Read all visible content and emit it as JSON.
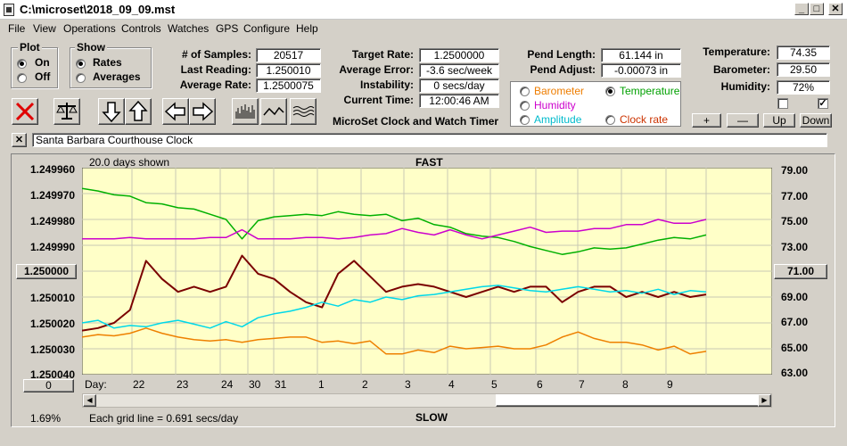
{
  "window": {
    "title": "C:\\microset\\2018_09_09.mst"
  },
  "menu": [
    "File",
    "View",
    "Operations",
    "Controls",
    "Watches",
    "GPS",
    "Configure",
    "Help"
  ],
  "plot": {
    "label": "Plot",
    "on": "On",
    "off": "Off",
    "selected": "on"
  },
  "show": {
    "label": "Show",
    "rates": "Rates",
    "averages": "Averages",
    "selected": "rates"
  },
  "stats": {
    "samples_label": "# of Samples:",
    "samples": "20517",
    "last_label": "Last Reading:",
    "last": "1.250010",
    "avg_label": "Average Rate:",
    "avg": "1.2500075",
    "target_label": "Target Rate:",
    "target": "1.2500000",
    "error_label": "Average Error:",
    "error": "-3.6 sec/week",
    "instab_label": "Instability:",
    "instab": "0 secs/day",
    "time_label": "Current Time:",
    "time": "12:00:46 AM",
    "pendlen_label": "Pend Length:",
    "pendlen": "61.144 in",
    "pendadj_label": "Pend Adjust:",
    "pendadj": "-0.00073 in",
    "temp_label": "Temperature:",
    "temp": "74.35",
    "baro_label": "Barometer:",
    "baro": "29.50",
    "hum_label": "Humidity:",
    "hum": "72%"
  },
  "timer_title": "MicroSet Clock and Watch Timer",
  "sensors": {
    "barometer": "Barometer",
    "temperature": "Temperature",
    "humidity": "Humidity",
    "amplitude": "Amplitude",
    "clockrate": "Clock rate",
    "selected": "temperature",
    "colors": {
      "barometer": "#ee7d00",
      "temperature": "#00a000",
      "humidity": "#cc00cc",
      "amplitude": "#00bbcc",
      "clockrate": "#cc3300"
    }
  },
  "adjust_buttons": {
    "plus": "+",
    "minus": "—",
    "up": "Up",
    "down": "Down"
  },
  "clock_name": "Santa Barbara Courthouse Clock",
  "chart_data": {
    "type": "line",
    "days_shown": "20.0 days shown",
    "top_label": "FAST",
    "bottom_label": "SLOW",
    "grid_note": "Each grid line = 0.691 secs/day",
    "zoom_pct": "1.69%",
    "left_ticks": [
      "1.249960",
      "1.249970",
      "1.249980",
      "1.249990",
      "1.250000",
      "1.250010",
      "1.250020",
      "1.250030",
      "1.250040"
    ],
    "right_ticks": [
      "79.00",
      "77.00",
      "75.00",
      "73.00",
      "71.00",
      "69.00",
      "67.00",
      "65.00",
      "63.00"
    ],
    "left_center_button": "1.250000",
    "right_center_button": "71.00",
    "offset_button": "0",
    "day_label": "Day:",
    "days": [
      "22",
      "23",
      "24",
      "30",
      "31",
      "1",
      "2",
      "3",
      "4",
      "5",
      "6",
      "7",
      "8",
      "9"
    ],
    "y_left_range": [
      1.24996,
      1.25004
    ],
    "y_right_range": [
      63.0,
      79.0
    ],
    "series": [
      {
        "name": "Temperature",
        "color": "#00b000",
        "axis": "right",
        "values": [
          77.4,
          77.2,
          76.9,
          76.8,
          76.3,
          76.2,
          75.9,
          75.8,
          75.4,
          75.0,
          73.5,
          74.9,
          75.2,
          75.3,
          75.4,
          75.3,
          75.6,
          75.4,
          75.3,
          75.4,
          74.9,
          75.1,
          74.6,
          74.4,
          73.9,
          73.7,
          73.6,
          73.3,
          72.9,
          72.6,
          72.3,
          72.5,
          72.8,
          72.7,
          72.8,
          73.1,
          73.4,
          73.6,
          73.5,
          73.8
        ]
      },
      {
        "name": "Humidity",
        "color": "#cc00cc",
        "axis": "right",
        "values": [
          73.5,
          73.5,
          73.5,
          73.6,
          73.5,
          73.5,
          73.5,
          73.5,
          73.6,
          73.6,
          74.2,
          73.5,
          73.5,
          73.5,
          73.6,
          73.6,
          73.5,
          73.6,
          73.8,
          73.9,
          74.3,
          74.0,
          73.8,
          74.2,
          73.8,
          73.5,
          73.8,
          74.1,
          74.4,
          74.0,
          74.1,
          74.1,
          74.3,
          74.3,
          74.6,
          74.6,
          75.0,
          74.7,
          74.7,
          75.0
        ]
      },
      {
        "name": "Clock rate",
        "color": "#7a0000",
        "axis": "left",
        "values": [
          1.250023,
          1.250022,
          1.25002,
          1.250015,
          1.249996,
          1.250003,
          1.250008,
          1.250006,
          1.250008,
          1.250006,
          1.249994,
          1.250001,
          1.250003,
          1.250008,
          1.250012,
          1.250014,
          1.250001,
          1.249996,
          1.250002,
          1.250008,
          1.250006,
          1.250005,
          1.250006,
          1.250008,
          1.25001,
          1.250008,
          1.250006,
          1.250008,
          1.250006,
          1.250006,
          1.250012,
          1.250008,
          1.250006,
          1.250006,
          1.25001,
          1.250008,
          1.25001,
          1.250008,
          1.25001,
          1.250009
        ]
      },
      {
        "name": "Amplitude",
        "color": "#00d8e8",
        "axis": "right",
        "values": [
          67.0,
          67.2,
          66.6,
          66.8,
          66.7,
          67.0,
          67.2,
          66.9,
          66.6,
          67.1,
          66.7,
          67.4,
          67.7,
          67.9,
          68.2,
          68.6,
          68.3,
          68.8,
          68.6,
          69.0,
          68.8,
          69.1,
          69.2,
          69.4,
          69.6,
          69.8,
          69.9,
          69.7,
          69.5,
          69.4,
          69.6,
          69.8,
          69.6,
          69.4,
          69.5,
          69.3,
          69.6,
          69.2,
          69.5,
          69.4
        ]
      },
      {
        "name": "Barometer",
        "color": "#ee8000",
        "axis": "right",
        "values": [
          65.9,
          66.1,
          66.0,
          66.2,
          66.6,
          66.2,
          65.9,
          65.7,
          65.6,
          65.7,
          65.5,
          65.7,
          65.8,
          65.9,
          65.9,
          65.5,
          65.6,
          65.4,
          65.6,
          64.6,
          64.6,
          64.9,
          64.7,
          65.2,
          65.0,
          65.1,
          65.2,
          65.0,
          65.0,
          65.3,
          65.9,
          66.3,
          65.8,
          65.5,
          65.5,
          65.3,
          64.9,
          65.2,
          64.6,
          64.8
        ]
      }
    ]
  }
}
